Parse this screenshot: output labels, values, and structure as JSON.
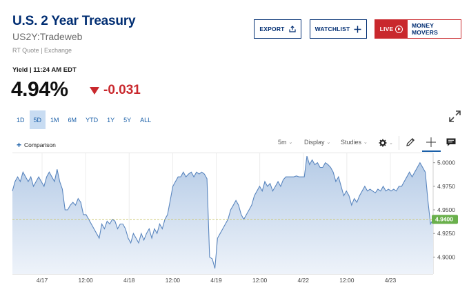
{
  "header": {
    "title": "U.S. 2 Year Treasury",
    "symbol": "US2Y:Tradeweb",
    "quote_source": "RT Quote | Exchange"
  },
  "actions": {
    "export_label": "EXPORT",
    "watchlist_label": "WATCHLIST",
    "live_label": "LIVE",
    "money_movers_label": "MONEY MOVERS"
  },
  "quote": {
    "yield_label": "Yield | 11:24 AM EDT",
    "price": "4.94%",
    "change": "-0.031"
  },
  "ranges": [
    "1D",
    "5D",
    "1M",
    "6M",
    "YTD",
    "1Y",
    "5Y",
    "ALL"
  ],
  "active_range": "5D",
  "toolbar": {
    "comparison_label": "Comparison",
    "interval_label": "5m",
    "display_label": "Display",
    "studies_label": "Studies"
  },
  "colors": {
    "brand": "#002d72",
    "down": "#c9282d",
    "accent": "#1a5fa8",
    "last_price_tag": "#6ab04c"
  },
  "icons": [
    "upload-icon",
    "plus-icon",
    "play-circle-icon",
    "triangle-down-icon",
    "expand-icon",
    "gear-icon",
    "pencil-icon",
    "crosshair-icon",
    "comment-icon"
  ],
  "chart_data": {
    "type": "area",
    "x_tick_labels": [
      "4/17",
      "12:00",
      "4/18",
      "12:00",
      "4/19",
      "12:00",
      "4/22",
      "12:00",
      "4/23"
    ],
    "y_tick_labels": [
      "5.0000",
      "4.9750",
      "4.9500",
      "4.9250",
      "4.9000"
    ],
    "ylim": [
      4.882,
      5.01
    ],
    "last_value_label": "4.9400",
    "reference_line": 4.94,
    "series": [
      {
        "values": [
          4.97,
          4.98,
          4.985,
          4.98,
          4.99,
          4.985,
          4.98,
          4.985,
          4.975,
          4.98,
          4.985,
          4.98,
          4.975,
          4.985,
          4.99,
          4.985,
          4.98,
          4.993,
          4.98,
          4.972,
          4.95,
          4.95,
          4.955,
          4.958,
          4.955,
          4.962,
          4.958,
          4.945,
          4.945,
          4.94,
          4.935,
          4.93,
          4.925,
          4.92,
          4.935,
          4.93,
          4.938,
          4.935,
          4.94,
          4.938,
          4.93,
          4.935,
          4.935,
          4.93,
          4.92,
          4.915,
          4.925,
          4.92,
          4.915,
          4.925,
          4.918,
          4.925,
          4.93,
          4.92,
          4.93,
          4.925,
          4.935,
          4.93,
          4.94,
          4.945,
          4.96,
          4.975,
          4.98,
          4.985,
          4.985,
          4.99,
          4.985,
          4.988,
          4.99,
          4.985,
          4.99,
          4.988,
          4.99,
          4.988,
          4.983,
          4.9,
          4.898,
          4.888,
          4.92,
          4.925,
          4.93,
          4.935,
          4.94,
          4.95,
          4.955,
          4.96,
          4.955,
          4.945,
          4.94,
          4.945,
          4.95,
          4.955,
          4.965,
          4.97,
          4.975,
          4.97,
          4.98,
          4.975,
          4.978,
          4.97,
          4.975,
          4.98,
          4.975,
          4.982,
          4.985,
          4.985,
          4.985,
          4.985,
          4.986,
          4.985,
          4.985,
          4.985,
          5.007,
          4.998,
          5.003,
          4.998,
          5.0,
          4.995,
          4.995,
          5.0,
          4.998,
          4.995,
          4.99,
          4.98,
          4.985,
          4.975,
          4.965,
          4.97,
          4.965,
          4.955,
          4.962,
          4.958,
          4.965,
          4.97,
          4.975,
          4.97,
          4.972,
          4.97,
          4.968,
          4.972,
          4.97,
          4.975,
          4.97,
          4.972,
          4.97,
          4.972,
          4.97,
          4.975,
          4.975,
          4.98,
          4.985,
          4.99,
          4.985,
          4.99,
          4.995,
          5.0,
          4.995,
          4.99,
          4.96,
          4.935,
          4.94
        ]
      }
    ]
  }
}
